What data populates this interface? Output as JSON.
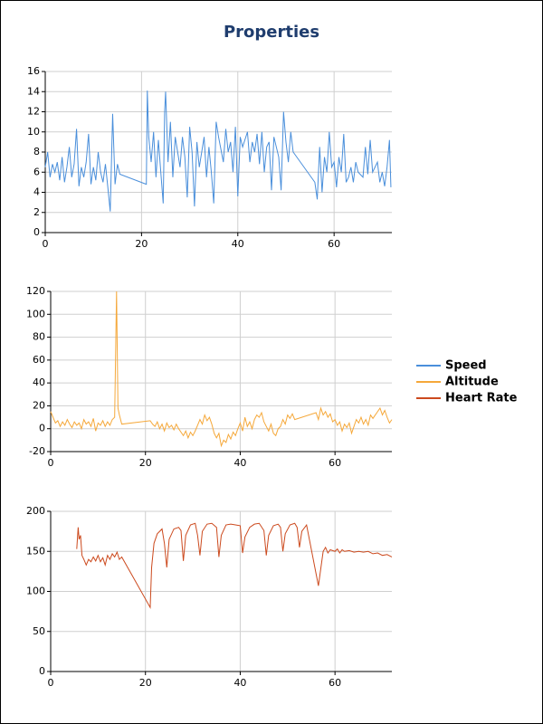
{
  "title": "Properties",
  "chart_data": [
    {
      "type": "line",
      "x": [
        0,
        0.5,
        1,
        1.5,
        2,
        2.5,
        3,
        3.5,
        4,
        4.5,
        5,
        5.5,
        6,
        6.5,
        7,
        7.5,
        8,
        8.5,
        9,
        9.5,
        10,
        10.5,
        11,
        11.5,
        12,
        12.5,
        13,
        13.5,
        14,
        14.5,
        15,
        15.5,
        21,
        21.2,
        21.5,
        22,
        22.5,
        23,
        23.5,
        24,
        24.5,
        24.8,
        25,
        25.5,
        26,
        26.5,
        27,
        27.5,
        28,
        28.5,
        29,
        29.5,
        30,
        30.5,
        31,
        31.5,
        32,
        33,
        33.5,
        34,
        34.5,
        35,
        35.5,
        36,
        37,
        37.5,
        38,
        38.5,
        39,
        39.5,
        40,
        40.5,
        41,
        42,
        42.5,
        43,
        43.5,
        44,
        44.5,
        45,
        45.5,
        46,
        46.5,
        47,
        47.5,
        48,
        48.5,
        49,
        49.5,
        50,
        50.5,
        51,
        51.5,
        56,
        56.5,
        57,
        57.5,
        58,
        58.5,
        59,
        59.5,
        60,
        60.5,
        61,
        61.5,
        62,
        62.5,
        63,
        63.5,
        64,
        64.5,
        65,
        66,
        66.5,
        67,
        67.5,
        68,
        69,
        69.5,
        70,
        70.5,
        71,
        71.5,
        71.8
      ],
      "series": [
        {
          "name": "Speed",
          "color": "#4a8fdb",
          "values": [
            6.5,
            8,
            5.5,
            6.8,
            6,
            7,
            5.2,
            7.5,
            5,
            6.5,
            8.5,
            5.5,
            6.8,
            10.3,
            4.6,
            6.5,
            5.5,
            7,
            9.8,
            4.8,
            6.5,
            5.2,
            8,
            6,
            5,
            6.8,
            4.5,
            2.1,
            11.8,
            4.8,
            6.8,
            5.8,
            4.8,
            14.1,
            9.5,
            7,
            10,
            5.5,
            9.2,
            6,
            2.9,
            12,
            14,
            7,
            11,
            5.5,
            9.5,
            8,
            6.5,
            9.5,
            7.5,
            3.5,
            10.5,
            8,
            2.6,
            9,
            6.5,
            9.5,
            5.5,
            8.5,
            6,
            2.9,
            11,
            9.5,
            7,
            10.3,
            8,
            9,
            6,
            10.5,
            3.6,
            9.5,
            8.5,
            10,
            7,
            9,
            8,
            9.8,
            6.8,
            10,
            6,
            8.5,
            9,
            4.2,
            9.5,
            8.5,
            7.5,
            4.2,
            12,
            9,
            7,
            10,
            8,
            5,
            3.3,
            8.5,
            4,
            7.5,
            6,
            10,
            6.5,
            7,
            4.5,
            7.5,
            6,
            9.8,
            5,
            5.5,
            6.5,
            5,
            7,
            6,
            5.5,
            8.5,
            5.8,
            9.2,
            6,
            7,
            5,
            6,
            4.6,
            6.5,
            9.2,
            4.5
          ]
        }
      ],
      "xlim": [
        0,
        72
      ],
      "ylim": [
        0,
        16
      ],
      "xticks": [
        0,
        20,
        40,
        60
      ],
      "yticks": [
        0,
        2,
        4,
        6,
        8,
        10,
        12,
        14,
        16
      ],
      "grid": true
    },
    {
      "type": "line",
      "x": [
        0,
        0.5,
        1,
        1.5,
        2,
        2.5,
        3,
        3.5,
        4,
        4.5,
        5,
        5.5,
        6,
        6.5,
        7,
        7.5,
        8,
        8.5,
        9,
        9.5,
        10,
        10.5,
        11,
        11.5,
        12,
        12.5,
        13,
        13.5,
        13.9,
        14.2,
        14.5,
        15,
        21,
        21.5,
        22,
        22.5,
        23,
        23.5,
        24,
        24.5,
        25,
        25.5,
        26,
        26.5,
        27,
        27.5,
        28,
        28.5,
        29,
        29.5,
        30,
        30.5,
        31,
        31.5,
        32,
        32.5,
        33,
        33.5,
        34,
        34.5,
        35,
        35.5,
        36,
        36.5,
        37,
        37.5,
        38,
        38.5,
        39,
        39.5,
        40,
        40.5,
        41,
        41.5,
        42,
        42.5,
        43,
        43.5,
        44,
        44.5,
        45,
        45.5,
        46,
        46.5,
        47,
        47.5,
        48,
        48.5,
        49,
        49.5,
        50,
        50.5,
        51,
        51.5,
        56,
        56.5,
        57,
        57.5,
        58,
        58.5,
        59,
        59.5,
        60,
        60.5,
        61,
        61.5,
        62,
        62.5,
        63,
        63.5,
        64,
        64.5,
        65,
        65.5,
        66,
        66.5,
        67,
        67.5,
        68,
        69,
        69.5,
        70,
        70.5,
        71,
        71.5,
        72
      ],
      "series": [
        {
          "name": "Altitude",
          "color": "#f5a83a",
          "values": [
            15,
            10,
            5,
            7,
            2,
            6,
            3,
            8,
            4,
            1,
            6,
            3,
            5,
            0,
            8,
            4,
            6,
            2,
            9,
            -2,
            5,
            3,
            7,
            2,
            6,
            3,
            8,
            10,
            120,
            18,
            12,
            4,
            7,
            4,
            2,
            6,
            0,
            4,
            -2,
            5,
            1,
            3,
            -1,
            4,
            0,
            -3,
            -6,
            -2,
            -8,
            -3,
            -6,
            -2,
            3,
            8,
            4,
            12,
            7,
            10,
            4,
            -4,
            -8,
            -4,
            -15,
            -10,
            -12,
            -5,
            -9,
            -3,
            -6,
            0,
            5,
            -2,
            10,
            2,
            6,
            0,
            8,
            12,
            10,
            14,
            6,
            2,
            -2,
            4,
            -4,
            -6,
            0,
            2,
            8,
            4,
            12,
            9,
            13,
            8,
            14,
            8,
            18,
            12,
            15,
            10,
            13,
            6,
            8,
            3,
            6,
            -2,
            4,
            1,
            5,
            -4,
            2,
            8,
            5,
            10,
            4,
            8,
            3,
            12,
            9,
            15,
            18,
            12,
            16,
            10,
            5,
            8
          ]
        }
      ],
      "xlim": [
        0,
        72
      ],
      "ylim": [
        -20,
        120
      ],
      "xticks": [
        0,
        20,
        40,
        60
      ],
      "yticks": [
        -20,
        0,
        20,
        40,
        60,
        80,
        100,
        120
      ],
      "grid": true
    },
    {
      "type": "line",
      "x": [
        5.5,
        5.8,
        6,
        6.3,
        6.6,
        7,
        7.5,
        8,
        8.5,
        9,
        9.5,
        10,
        10.5,
        11,
        11.5,
        12,
        12.5,
        13,
        13.5,
        14,
        14.5,
        15,
        21,
        21.3,
        21.8,
        22.5,
        23.5,
        24,
        24.5,
        25,
        26,
        27,
        27.5,
        28,
        28.5,
        29.5,
        30.5,
        31,
        31.5,
        32,
        33,
        34,
        35,
        35.5,
        36,
        37,
        38,
        39,
        40,
        40.5,
        41,
        42,
        43,
        44,
        45,
        45.5,
        46,
        47,
        48,
        48.5,
        49,
        49.5,
        50.5,
        51.5,
        52,
        52.5,
        53,
        54,
        56.5,
        57.5,
        58,
        58.5,
        59,
        60,
        60.5,
        61,
        61.5,
        62,
        63,
        64,
        65,
        66,
        67,
        68,
        69,
        70,
        71,
        72
      ],
      "series": [
        {
          "name": "Heart Rate",
          "color": "#cc4a1e",
          "values": [
            153,
            180,
            165,
            170,
            145,
            140,
            133,
            140,
            137,
            143,
            138,
            145,
            137,
            142,
            133,
            145,
            140,
            147,
            143,
            149,
            140,
            143,
            80,
            130,
            160,
            172,
            178,
            160,
            130,
            165,
            178,
            180,
            176,
            138,
            170,
            183,
            185,
            170,
            145,
            175,
            184,
            185,
            180,
            143,
            170,
            183,
            184,
            183,
            182,
            148,
            168,
            180,
            184,
            185,
            176,
            145,
            170,
            182,
            184,
            180,
            150,
            172,
            183,
            185,
            180,
            155,
            175,
            183,
            107,
            150,
            155,
            148,
            152,
            150,
            153,
            148,
            152,
            150,
            151,
            149,
            150,
            149,
            150,
            147,
            148,
            145,
            146,
            143
          ]
        }
      ],
      "xlim": [
        0,
        72
      ],
      "ylim": [
        0,
        200
      ],
      "xticks": [
        0,
        20,
        40,
        60
      ],
      "yticks": [
        0,
        50,
        100,
        150,
        200
      ],
      "grid": true
    }
  ]
}
